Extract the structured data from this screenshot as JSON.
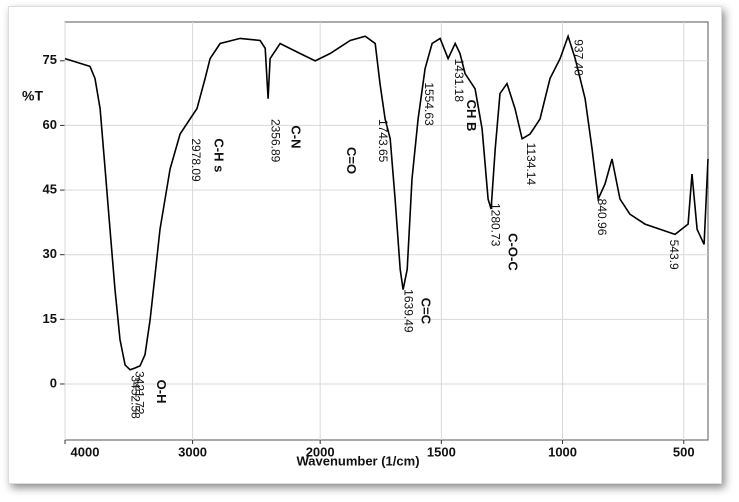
{
  "chart_data": {
    "type": "line",
    "x_label": "Wavenumber (1/cm)",
    "y_label": "%T",
    "xlim": [
      4000,
      400
    ],
    "ylim": [
      -13,
      84
    ],
    "xticks": [
      4000,
      3000,
      2000,
      1500,
      1000,
      500
    ],
    "yticks": [
      0,
      15,
      30,
      45,
      60,
      75
    ],
    "grid": true,
    "series": [
      {
        "color": "#000000",
        "x": [
          4000,
          3804,
          3765,
          3725,
          3686,
          3647,
          3608,
          3569,
          3529,
          3490,
          3451,
          3412,
          3373,
          3333,
          3294,
          3255,
          3176,
          3098,
          3020,
          2965,
          2902,
          2863,
          2784,
          2627,
          2471,
          2431,
          2408,
          2392,
          2314,
          2157,
          2039,
          1959,
          1876,
          1814,
          1773,
          1753,
          1732,
          1711,
          1691,
          1670,
          1658,
          1641,
          1621,
          1596,
          1567,
          1538,
          1505,
          1472,
          1443,
          1423,
          1402,
          1361,
          1332,
          1307,
          1295,
          1278,
          1258,
          1229,
          1196,
          1167,
          1134,
          1093,
          1052,
          1010,
          977,
          948,
          907,
          878,
          853,
          825,
          796,
          763,
          722,
          660,
          598,
          536,
          482,
          466,
          445,
          416,
          400
        ],
        "values": [
          75.5,
          73.7,
          70.9,
          63.9,
          49.9,
          35.9,
          21.9,
          10.3,
          4.4,
          3.3,
          3.7,
          4.2,
          6.8,
          14.9,
          25.4,
          35.9,
          49.9,
          58,
          61.5,
          63.9,
          70.9,
          75.5,
          79,
          80.2,
          79.7,
          77.9,
          66.2,
          75.5,
          79,
          76.7,
          75,
          76.7,
          79.7,
          80.7,
          79,
          69.7,
          61.5,
          56.9,
          42.9,
          26.6,
          21.9,
          26.6,
          47.6,
          61.5,
          73.2,
          79,
          80.2,
          75.5,
          79,
          76.7,
          72,
          68.5,
          59.2,
          42.9,
          40.6,
          54.5,
          67.4,
          69.7,
          63.9,
          56.9,
          58,
          61.5,
          70.9,
          75.5,
          80.7,
          75.5,
          66.2,
          54.5,
          42.9,
          46.4,
          52.2,
          42.9,
          39.4,
          37.1,
          35.9,
          34.7,
          37.1,
          48.7,
          35.9,
          32.4,
          52.2
        ]
      }
    ],
    "peaks": [
      {
        "label": "3452.58",
        "x": 3452.58,
        "y": 2
      },
      {
        "label": "3421.72",
        "x": 3421.72,
        "y": 3
      },
      {
        "label": "2978.09",
        "x": 2978.09,
        "y": 57
      },
      {
        "label": "2356.89",
        "x": 2356.89,
        "y": 61.5
      },
      {
        "label": "1743.65",
        "x": 1743.65,
        "y": 61.5
      },
      {
        "label": "1639.49",
        "x": 1639.49,
        "y": 22
      },
      {
        "label": "1554.63",
        "x": 1554.63,
        "y": 70
      },
      {
        "label": "1431.18",
        "x": 1431.18,
        "y": 75.5
      },
      {
        "label": "1280.73",
        "x": 1280.73,
        "y": 42
      },
      {
        "label": "1134.14",
        "x": 1134.14,
        "y": 56
      },
      {
        "label": "937.40",
        "x": 937.4,
        "y": 80
      },
      {
        "label": "840.96",
        "x": 840.96,
        "y": 43
      },
      {
        "label": "543.9",
        "x": 543.9,
        "y": 33.5
      }
    ],
    "annotations": [
      {
        "text": "O-H",
        "x": 3250,
        "y": 1
      },
      {
        "text": "C-H  s",
        "x": 2800,
        "y": 57
      },
      {
        "text": "C-N",
        "x": 2196,
        "y": 60
      },
      {
        "text": "C=O",
        "x": 1876,
        "y": 55
      },
      {
        "text": "C=C",
        "x": 1567,
        "y": 20
      },
      {
        "text": "CH  B",
        "x": 1381,
        "y": 66
      },
      {
        "text": "C-O-C",
        "x": 1208,
        "y": 35
      }
    ]
  }
}
